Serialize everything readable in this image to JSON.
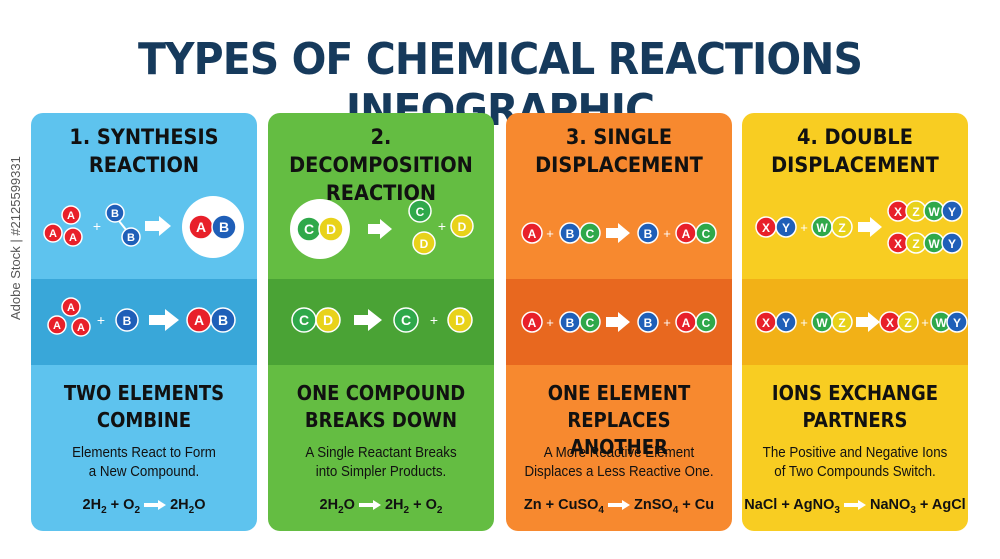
{
  "title": "TYPES OF CHEMICAL REACTIONS INFOGRAPHIC",
  "watermark": "Adobe Stock | #2125599331",
  "cards": [
    {
      "head_line1": "1. SYNTHESIS",
      "head_line2": "REACTION",
      "tag_line1": "TWO ELEMENTS",
      "tag_line2": "COMBINE",
      "desc_line1": "Elements React to Form",
      "desc_line2": "a New Compound.",
      "eq_left": "2H",
      "eq_left_sub": "2",
      "eq_plus": " + O",
      "eq_plus_sub": "2",
      "eq_right": "2H",
      "eq_right_sub": "2",
      "eq_right_tail": "O",
      "diagram_labels": {
        "a": "A",
        "b": "B",
        "ab_a": "A",
        "ab_b": "B"
      }
    },
    {
      "head_line1": "2. DECOMPOSITION",
      "head_line2": "REACTION",
      "tag_line1": "ONE COMPOUND",
      "tag_line2": "BREAKS DOWN",
      "desc_line1": "A Single Reactant Breaks",
      "desc_line2": "into Simpler Products.",
      "eq_left": "2H",
      "eq_left_sub": "2",
      "eq_left_tail": "O",
      "eq_right": "2H",
      "eq_right_sub": "2",
      "eq_plus": " + O",
      "eq_plus_sub": "2",
      "diagram_labels": {
        "c": "C",
        "d": "D"
      }
    },
    {
      "head_line1": "3. SINGLE",
      "head_line2": "DISPLACEMENT",
      "tag_line1": "ONE ELEMENT",
      "tag_line2": "REPLACES ANOTHER",
      "desc_line1": "A More Reactive Element",
      "desc_line2": "Displaces a Less Reactive One.",
      "eq_left": "Zn + CuSO",
      "eq_left_sub": "4",
      "eq_right": "ZnSO",
      "eq_right_sub": "4",
      "eq_right_tail": " + Cu",
      "diagram_labels": {
        "a": "A",
        "b": "B",
        "c": "C"
      }
    },
    {
      "head_line1": "4. DOUBLE",
      "head_line2": "DISPLACEMENT",
      "tag_line1": "IONS EXCHANGE",
      "tag_line2": "PARTNERS",
      "desc_line1": "The Positive and Negative Ions",
      "desc_line2": "of Two Compounds Switch.",
      "eq_left": "NaCl + AgNO",
      "eq_left_sub": "3",
      "eq_right": "NaNO",
      "eq_right_sub": "3",
      "eq_right_tail": " + AgCl",
      "diagram_labels": {
        "x": "X",
        "y": "Y",
        "w": "W",
        "z": "Z"
      }
    }
  ],
  "colors": {
    "title": "#163a5c",
    "atom_red": "#e8202a",
    "atom_blue": "#1f5fb8",
    "atom_green": "#2fa84a",
    "atom_yellow": "#e8d21a",
    "synthesis_bg": "#5ec3ee",
    "decomposition_bg": "#64bd42",
    "single_bg": "#f7892f",
    "double_bg": "#f8cd22"
  }
}
